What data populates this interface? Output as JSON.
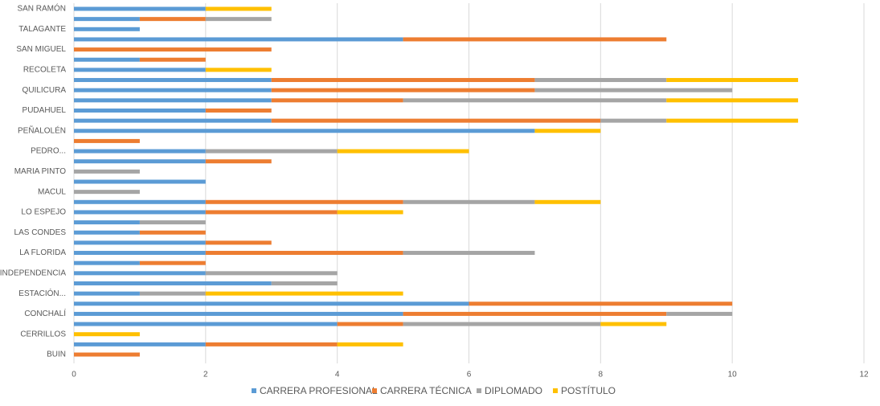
{
  "chart_data": {
    "type": "stacked-barh",
    "categories": [
      "BUIN",
      null,
      "CERRILLOS",
      null,
      "CONCHALÍ",
      null,
      "ESTACIÓN...",
      null,
      "INDEPENDENCIA",
      null,
      "LA FLORIDA",
      null,
      "LAS CONDES",
      null,
      "LO ESPEJO",
      null,
      "MACUL",
      null,
      "MARIA PINTO",
      null,
      "PEDRO...",
      null,
      "PEÑALOLÉN",
      null,
      "PUDAHUEL",
      null,
      "QUILICURA",
      null,
      "RECOLETA",
      null,
      "SAN MIGUEL",
      null,
      "TALAGANTE",
      null,
      "SAN RAMÓN"
    ],
    "series": [
      {
        "name": "CARRERA PROFESIONAL",
        "color": "#5b9bd5",
        "values": [
          0,
          2,
          0,
          4,
          5,
          6,
          1,
          3,
          2,
          1,
          2,
          2,
          1,
          1,
          2,
          2,
          0,
          2,
          0,
          2,
          2,
          0,
          7,
          3,
          2,
          3,
          3,
          3,
          2,
          1,
          0,
          5,
          1,
          1,
          2
        ]
      },
      {
        "name": "CARRERA TÉCNICA",
        "color": "#ed7d31",
        "values": [
          1,
          2,
          0,
          1,
          4,
          4,
          0,
          0,
          0,
          1,
          3,
          1,
          1,
          0,
          2,
          3,
          0,
          0,
          0,
          1,
          0,
          1,
          0,
          5,
          1,
          2,
          4,
          4,
          0,
          1,
          3,
          4,
          0,
          1,
          0
        ]
      },
      {
        "name": "DIPLOMADO",
        "color": "#a5a5a5",
        "values": [
          0,
          0,
          0,
          3,
          1,
          0,
          1,
          1,
          2,
          0,
          2,
          0,
          0,
          1,
          0,
          2,
          1,
          0,
          1,
          0,
          2,
          0,
          0,
          1,
          0,
          4,
          3,
          2,
          0,
          0,
          0,
          0,
          0,
          1,
          0
        ]
      },
      {
        "name": "POSTÍTULO",
        "color": "#ffc000",
        "values": [
          0,
          1,
          1,
          1,
          0,
          0,
          3,
          0,
          0,
          0,
          0,
          0,
          0,
          0,
          1,
          1,
          0,
          0,
          0,
          0,
          2,
          0,
          1,
          2,
          0,
          2,
          0,
          2,
          1,
          0,
          0,
          0,
          0,
          0,
          1
        ]
      }
    ],
    "xlim": [
      0,
      12
    ],
    "xticks": [
      0,
      2,
      4,
      6,
      8,
      10,
      12
    ],
    "grid": true,
    "legend": "bottom"
  }
}
